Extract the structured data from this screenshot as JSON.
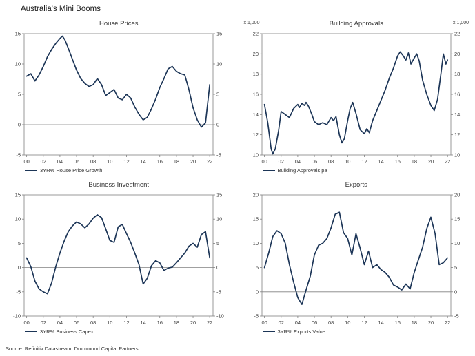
{
  "page": {
    "title": "Australia's Mini Booms",
    "source": "Source: Refinitiv Datastream, Drummond Capital Partners"
  },
  "colors": {
    "line": "#1c3557",
    "axis": "#808080",
    "tick_text": "#404040"
  },
  "chart_data": [
    {
      "type": "line",
      "title": "House Prices",
      "legend": "3YR% House Price Growth",
      "unit_left": "",
      "unit_right": "",
      "ylim": [
        -5,
        15
      ],
      "yticks": [
        -5,
        0,
        5,
        10,
        15
      ],
      "ytick_labels": [
        "-5",
        "0",
        "5",
        "10",
        "15"
      ],
      "xlim": [
        -0.3,
        22.4
      ],
      "xticks": [
        0,
        2,
        4,
        6,
        8,
        10,
        12,
        14,
        16,
        18,
        20,
        22
      ],
      "xtick_labels": [
        "00",
        "02",
        "04",
        "06",
        "08",
        "10",
        "12",
        "14",
        "16",
        "18",
        "20",
        "22"
      ],
      "zero_line": true,
      "x": [
        0,
        0.5,
        1,
        1.5,
        2,
        2.5,
        3,
        3.5,
        4,
        4.3,
        4.6,
        5,
        5.5,
        6,
        6.5,
        7,
        7.5,
        8,
        8.5,
        9,
        9.5,
        10,
        10.5,
        11,
        11.5,
        12,
        12.5,
        13,
        13.5,
        14,
        14.5,
        15,
        15.5,
        16,
        16.5,
        17,
        17.5,
        18,
        18.5,
        19,
        19.5,
        20,
        20.5,
        21,
        21.5,
        22
      ],
      "values": [
        8.0,
        8.4,
        7.2,
        8.2,
        9.6,
        11.2,
        12.4,
        13.4,
        14.2,
        14.6,
        14.0,
        12.6,
        10.8,
        9.0,
        7.6,
        6.8,
        6.3,
        6.6,
        7.6,
        6.6,
        4.8,
        5.3,
        5.8,
        4.4,
        4.1,
        5.0,
        4.4,
        2.9,
        1.7,
        0.8,
        1.2,
        2.6,
        4.2,
        6.1,
        7.6,
        9.2,
        9.6,
        8.8,
        8.4,
        8.2,
        5.8,
        2.8,
        0.8,
        -0.4,
        0.3,
        6.6
      ]
    },
    {
      "type": "line",
      "title": "Building Approvals",
      "legend": "Building Approvals pa",
      "unit_left": "x 1,000",
      "unit_right": "x 1,000",
      "ylim": [
        10,
        22
      ],
      "yticks": [
        10,
        12,
        14,
        16,
        18,
        20,
        22
      ],
      "ytick_labels": [
        "10",
        "12",
        "14",
        "16",
        "18",
        "20",
        "22"
      ],
      "xlim": [
        -0.3,
        22.4
      ],
      "xticks": [
        0,
        2,
        4,
        6,
        8,
        10,
        12,
        14,
        16,
        18,
        20,
        22
      ],
      "xtick_labels": [
        "00",
        "02",
        "04",
        "06",
        "08",
        "10",
        "12",
        "14",
        "16",
        "18",
        "20",
        "22"
      ],
      "zero_line": false,
      "x": [
        0,
        0.4,
        0.8,
        1,
        1.3,
        1.7,
        2,
        2.5,
        3,
        3.5,
        4,
        4.2,
        4.5,
        4.8,
        5,
        5.3,
        5.7,
        6,
        6.5,
        7,
        7.5,
        8,
        8.3,
        8.6,
        9,
        9.3,
        9.6,
        10,
        10.3,
        10.6,
        11,
        11.5,
        12,
        12.3,
        12.6,
        13,
        13.5,
        14,
        14.5,
        15,
        15.5,
        16,
        16.3,
        16.6,
        17,
        17.3,
        17.6,
        18,
        18.3,
        18.6,
        19,
        19.5,
        20,
        20.4,
        20.8,
        21.2,
        21.5,
        21.8,
        22
      ],
      "values": [
        15.0,
        13.2,
        10.6,
        10.1,
        10.6,
        12.4,
        14.3,
        14.0,
        13.7,
        14.6,
        15.0,
        14.7,
        15.1,
        14.9,
        15.2,
        14.8,
        14.0,
        13.3,
        13.0,
        13.2,
        13.0,
        13.7,
        13.4,
        13.8,
        12.0,
        11.2,
        11.6,
        13.4,
        14.6,
        15.2,
        14.1,
        12.5,
        12.1,
        12.6,
        12.2,
        13.4,
        14.4,
        15.4,
        16.4,
        17.6,
        18.6,
        19.8,
        20.2,
        19.9,
        19.4,
        20.1,
        19.0,
        19.6,
        20.0,
        19.3,
        17.4,
        16.0,
        14.9,
        14.4,
        15.5,
        18.0,
        20.0,
        19.0,
        19.4
      ]
    },
    {
      "type": "line",
      "title": "Business Investment",
      "legend": "3YR% Business Capex",
      "unit_left": "",
      "unit_right": "",
      "ylim": [
        -10,
        15
      ],
      "yticks": [
        -10,
        -5,
        0,
        5,
        10,
        15
      ],
      "ytick_labels": [
        "-10",
        "-5",
        "0",
        "5",
        "10",
        "15"
      ],
      "xlim": [
        -0.3,
        22.4
      ],
      "xticks": [
        0,
        2,
        4,
        6,
        8,
        10,
        12,
        14,
        16,
        18,
        20,
        22
      ],
      "xtick_labels": [
        "00",
        "02",
        "04",
        "06",
        "08",
        "10",
        "12",
        "14",
        "16",
        "18",
        "20",
        "22"
      ],
      "zero_line": true,
      "x": [
        0,
        0.5,
        1,
        1.5,
        2,
        2.5,
        3,
        3.5,
        4,
        4.5,
        5,
        5.5,
        6,
        6.5,
        7,
        7.5,
        8,
        8.5,
        9,
        9.5,
        10,
        10.5,
        11,
        11.5,
        12,
        12.5,
        13,
        13.5,
        14,
        14.5,
        15,
        15.5,
        16,
        16.5,
        17,
        17.5,
        18,
        18.5,
        19,
        19.5,
        20,
        20.5,
        21,
        21.5,
        22
      ],
      "values": [
        2.0,
        0.2,
        -2.8,
        -4.4,
        -5.0,
        -5.4,
        -3.2,
        0.2,
        3.0,
        5.4,
        7.4,
        8.6,
        9.4,
        9.0,
        8.2,
        9.0,
        10.2,
        10.9,
        10.3,
        8.0,
        5.6,
        5.2,
        8.4,
        8.9,
        7.0,
        5.2,
        3.0,
        0.6,
        -3.4,
        -2.2,
        0.4,
        1.4,
        1.0,
        -0.6,
        -0.1,
        0.1,
        1.0,
        2.0,
        3.0,
        4.4,
        5.0,
        4.2,
        6.8,
        7.4,
        2.0
      ]
    },
    {
      "type": "line",
      "title": "Exports",
      "legend": "3YR% Exports Value",
      "unit_left": "",
      "unit_right": "",
      "ylim": [
        -5,
        20
      ],
      "yticks": [
        -5,
        0,
        5,
        10,
        15,
        20
      ],
      "ytick_labels": [
        "-5",
        "0",
        "5",
        "10",
        "15",
        "20"
      ],
      "xlim": [
        -0.3,
        22.4
      ],
      "xticks": [
        0,
        2,
        4,
        6,
        8,
        10,
        12,
        14,
        16,
        18,
        20,
        22
      ],
      "xtick_labels": [
        "00",
        "02",
        "04",
        "06",
        "08",
        "10",
        "12",
        "14",
        "16",
        "18",
        "20",
        "22"
      ],
      "zero_line": true,
      "x": [
        0,
        0.5,
        1,
        1.5,
        2,
        2.5,
        3,
        3.5,
        4,
        4.5,
        5,
        5.5,
        6,
        6.5,
        7,
        7.5,
        8,
        8.5,
        9,
        9.5,
        10,
        10.5,
        11,
        11.5,
        12,
        12.5,
        13,
        13.5,
        14,
        14.5,
        15,
        15.5,
        16,
        16.5,
        17,
        17.5,
        18,
        18.5,
        19,
        19.5,
        20,
        20.5,
        21,
        21.5,
        22
      ],
      "values": [
        5.0,
        8.0,
        11.4,
        12.6,
        12.0,
        10.0,
        5.6,
        2.0,
        -1.2,
        -2.6,
        0.4,
        3.2,
        7.6,
        9.6,
        10.0,
        11.0,
        13.2,
        16.0,
        16.4,
        12.2,
        11.0,
        7.6,
        12.0,
        9.0,
        5.6,
        8.4,
        5.0,
        5.6,
        4.6,
        4.0,
        3.0,
        1.4,
        1.0,
        0.4,
        1.6,
        0.6,
        4.0,
        6.6,
        9.2,
        13.0,
        15.4,
        12.0,
        5.6,
        6.0,
        7.0
      ]
    }
  ]
}
